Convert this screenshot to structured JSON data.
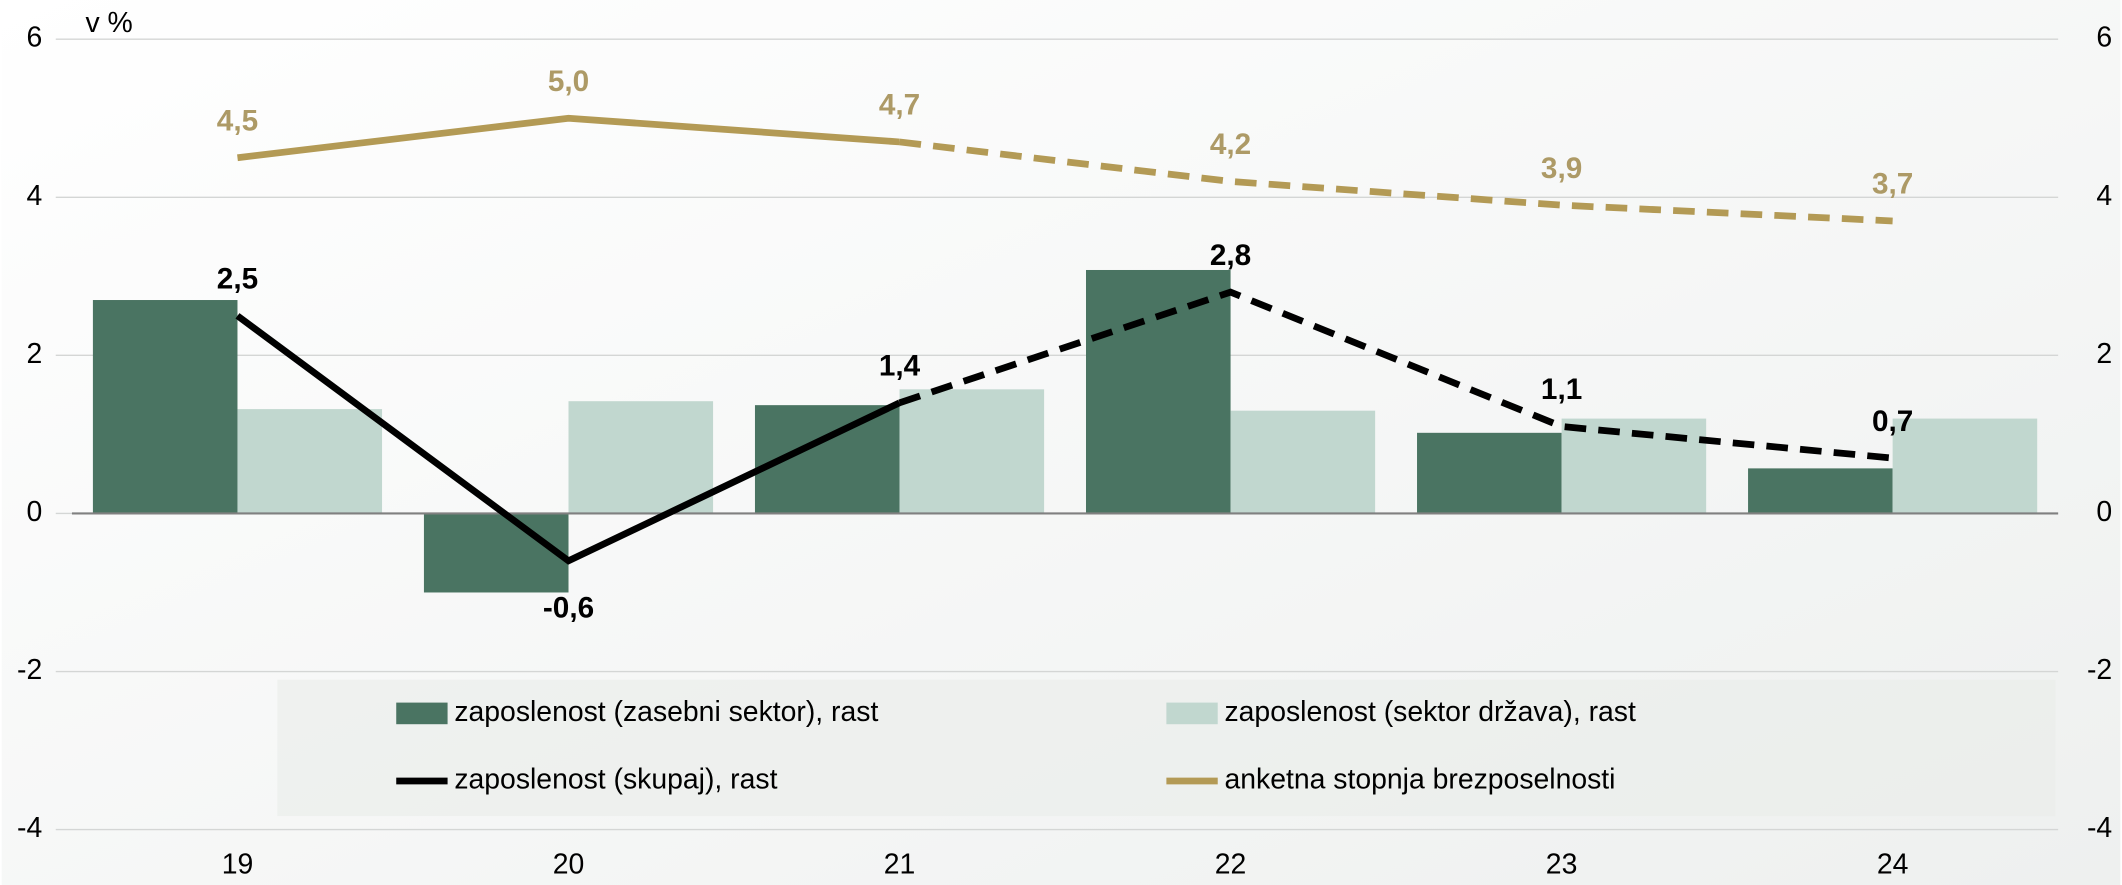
{
  "chart_data": {
    "type": "bar_line",
    "y_label": "v %",
    "categories": [
      "19",
      "20",
      "21",
      "22",
      "23",
      "24"
    ],
    "ylim": [
      -4,
      6
    ],
    "yticks": [
      -4,
      -2,
      0,
      2,
      4,
      6
    ],
    "y2lim": [
      -4,
      6
    ],
    "y2ticks": [
      -4,
      -2,
      0,
      2,
      4,
      6
    ],
    "grid": true,
    "series": [
      {
        "name": "zaposlenost (zasebni sektor), rast",
        "type": "bar",
        "color": "#4a7462",
        "values": [
          2.7,
          -1.0,
          1.37,
          3.08,
          1.02,
          0.57
        ]
      },
      {
        "name": "zaposlenost (sektor država), rast",
        "type": "bar",
        "color": "#c1d7cf",
        "values": [
          1.32,
          1.42,
          1.57,
          1.3,
          1.2,
          1.2
        ]
      },
      {
        "name": "zaposlenost (skupaj), rast",
        "type": "line",
        "color": "#000000",
        "dash_from_index": 2,
        "values": [
          2.5,
          -0.6,
          1.4,
          2.8,
          1.1,
          0.7
        ],
        "value_labels": [
          "2,5",
          "-0,6",
          "1,4",
          "2,8",
          "1,1",
          "0,7"
        ],
        "label_color": "#000000"
      },
      {
        "name": "anketna stopnja brezposelnosti",
        "type": "line",
        "color": "#b39a55",
        "dash_from_index": 2,
        "values": [
          4.5,
          5.0,
          4.7,
          4.2,
          3.9,
          3.7
        ],
        "value_labels": [
          "4,5",
          "5,0",
          "4,7",
          "4,2",
          "3,9",
          "3,7"
        ],
        "label_color": "#ad9a66"
      }
    ]
  }
}
